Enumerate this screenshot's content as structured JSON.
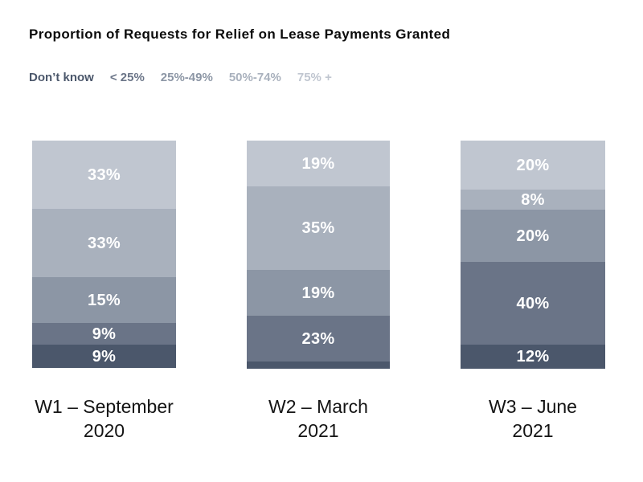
{
  "title": "Proportion of Requests for Relief on Lease Payments Granted",
  "legend": {
    "items": [
      {
        "label": "Don’t know",
        "color": "#4b576b"
      },
      {
        "label": "< 25%",
        "color": "#6a7487"
      },
      {
        "label": "25%-49%",
        "color": "#8c96a5"
      },
      {
        "label": "50%-74%",
        "color": "#a9b1bd"
      },
      {
        "label": "75% +",
        "color": "#c0c6d0"
      }
    ]
  },
  "colors": {
    "75% +": "#c0c6d0",
    "50%-74%": "#a9b1bd",
    "25%-49%": "#8c96a5",
    "< 25%": "#6a7487",
    "Don’t know": "#4b576b"
  },
  "chart_data": {
    "type": "bar",
    "stacked": true,
    "orientation": "vertical",
    "title": "Proportion of Requests for Relief on Lease Payments Granted",
    "categories": [
      "W1 – September 2020",
      "W2 – March 2021",
      "W3 – June 2021"
    ],
    "series": [
      {
        "name": "75% +",
        "values": [
          33,
          19,
          20
        ]
      },
      {
        "name": "50%-74%",
        "values": [
          33,
          35,
          8
        ]
      },
      {
        "name": "25%-49%",
        "values": [
          15,
          19,
          20
        ]
      },
      {
        "name": "< 25%",
        "values": [
          9,
          23,
          40
        ]
      },
      {
        "name": "Don’t know",
        "values": [
          9,
          4,
          12
        ]
      }
    ],
    "legend_position": "top",
    "value_labels": "percent shown in white inside segments; W2 Don’t know segment is unlabeled (≈4% estimated from its size)",
    "grid": false,
    "axes": "no visible axis lines or ticks"
  },
  "bars": [
    {
      "category_line1": "W1 – September",
      "category_line2": "2020",
      "segments": [
        {
          "band": "75% +",
          "label": "33%",
          "h": 85
        },
        {
          "band": "50%-74%",
          "label": "33%",
          "h": 85
        },
        {
          "band": "25%-49%",
          "label": "15%",
          "h": 57
        },
        {
          "band": "< 25%",
          "label": "9%",
          "h": 27
        },
        {
          "band": "Don’t know",
          "label": "9%",
          "h": 29
        }
      ]
    },
    {
      "category_line1": "W2 – March",
      "category_line2": "2021",
      "segments": [
        {
          "band": "75% +",
          "label": "19%",
          "h": 57
        },
        {
          "band": "50%-74%",
          "label": "35%",
          "h": 104
        },
        {
          "band": "25%-49%",
          "label": "19%",
          "h": 57
        },
        {
          "band": "< 25%",
          "label": "23%",
          "h": 57
        },
        {
          "band": "Don’t know",
          "label": "",
          "h": 9
        }
      ]
    },
    {
      "category_line1": "W3 – June",
      "category_line2": "2021",
      "segments": [
        {
          "band": "75% +",
          "label": "20%",
          "h": 61
        },
        {
          "band": "50%-74%",
          "label": "8%",
          "h": 25
        },
        {
          "band": "25%-49%",
          "label": "20%",
          "h": 65
        },
        {
          "band": "< 25%",
          "label": "40%",
          "h": 103
        },
        {
          "band": "Don’t know",
          "label": "12%",
          "h": 30
        }
      ]
    }
  ]
}
